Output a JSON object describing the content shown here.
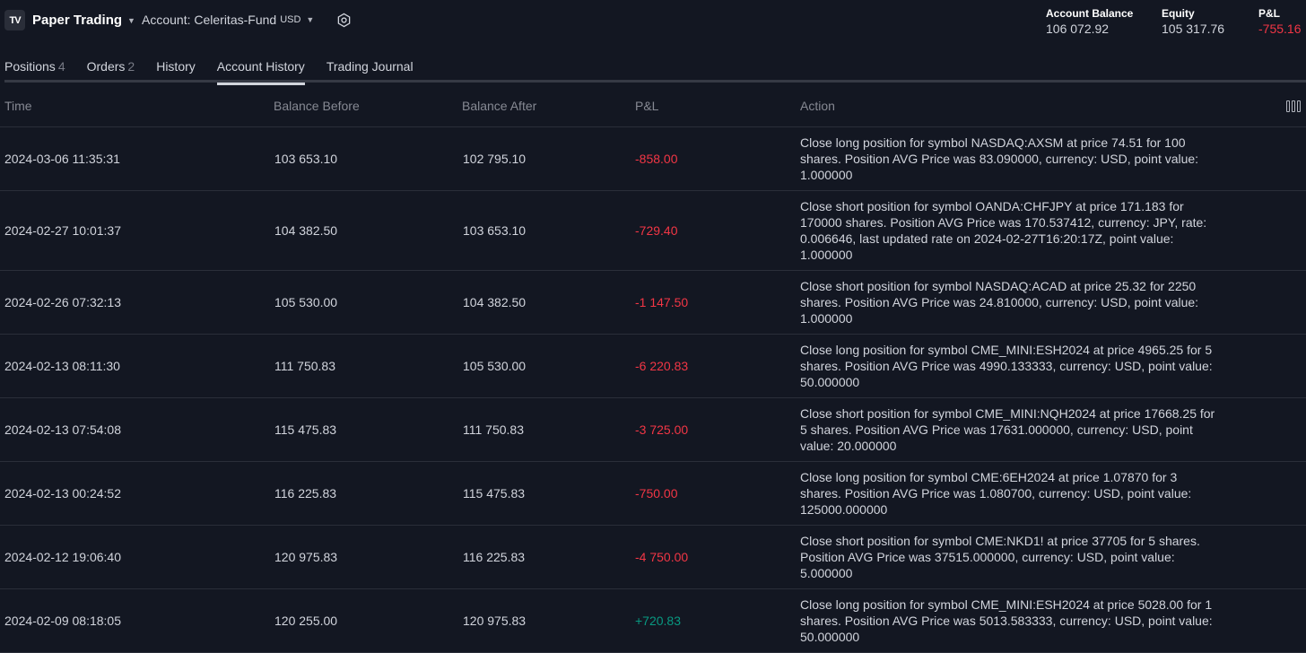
{
  "header": {
    "logo": "TV",
    "brand": "Paper Trading",
    "account_label": "Account: Celeritas-Fund",
    "account_currency": "USD",
    "stats": [
      {
        "label": "Account Balance",
        "value": "106 072.92"
      },
      {
        "label": "Equity",
        "value": "105 317.76"
      },
      {
        "label": "P&L",
        "value": "-755.16"
      }
    ]
  },
  "tabs": [
    {
      "label": "Positions",
      "count": "4"
    },
    {
      "label": "Orders",
      "count": "2"
    },
    {
      "label": "History",
      "count": ""
    },
    {
      "label": "Account History",
      "count": ""
    },
    {
      "label": "Trading Journal",
      "count": ""
    }
  ],
  "table": {
    "columns": [
      "Time",
      "Balance Before",
      "Balance After",
      "P&L",
      "Action"
    ],
    "rows": [
      {
        "time": "2024-03-06 11:35:31",
        "before": "103 653.10",
        "after": "102 795.10",
        "pl": "-858.00",
        "sign": "neg",
        "action": "Close long position for symbol NASDAQ:AXSM at price 74.51 for 100 shares. Position AVG Price was 83.090000, currency: USD, point value: 1.000000"
      },
      {
        "time": "2024-02-27 10:01:37",
        "before": "104 382.50",
        "after": "103 653.10",
        "pl": "-729.40",
        "sign": "neg",
        "action": "Close short position for symbol OANDA:CHFJPY at price 171.183 for 170000 shares. Position AVG Price was 170.537412, currency: JPY, rate: 0.006646, last updated rate on 2024-02-27T16:20:17Z, point value: 1.000000"
      },
      {
        "time": "2024-02-26 07:32:13",
        "before": "105 530.00",
        "after": "104 382.50",
        "pl": "-1 147.50",
        "sign": "neg",
        "action": "Close short position for symbol NASDAQ:ACAD at price 25.32 for 2250 shares. Position AVG Price was 24.810000, currency: USD, point value: 1.000000"
      },
      {
        "time": "2024-02-13 08:11:30",
        "before": "111 750.83",
        "after": "105 530.00",
        "pl": "-6 220.83",
        "sign": "neg",
        "action": "Close long position for symbol CME_MINI:ESH2024 at price 4965.25 for 5 shares. Position AVG Price was 4990.133333, currency: USD, point value: 50.000000"
      },
      {
        "time": "2024-02-13 07:54:08",
        "before": "115 475.83",
        "after": "111 750.83",
        "pl": "-3 725.00",
        "sign": "neg",
        "action": "Close short position for symbol CME_MINI:NQH2024 at price 17668.25 for 5 shares. Position AVG Price was 17631.000000, currency: USD, point value: 20.000000"
      },
      {
        "time": "2024-02-13 00:24:52",
        "before": "116 225.83",
        "after": "115 475.83",
        "pl": "-750.00",
        "sign": "neg",
        "action": "Close long position for symbol CME:6EH2024 at price 1.07870 for 3 shares. Position AVG Price was 1.080700, currency: USD, point value: 125000.000000"
      },
      {
        "time": "2024-02-12 19:06:40",
        "before": "120 975.83",
        "after": "116 225.83",
        "pl": "-4 750.00",
        "sign": "neg",
        "action": "Close short position for symbol CME:NKD1! at price 37705 for 5 shares. Position AVG Price was 37515.000000, currency: USD, point value: 5.000000"
      },
      {
        "time": "2024-02-09 08:18:05",
        "before": "120 255.00",
        "after": "120 975.83",
        "pl": "+720.83",
        "sign": "pos",
        "action": "Close long position for symbol CME_MINI:ESH2024 at price 5028.00 for 1 shares. Position AVG Price was 5013.583333, currency: USD, point value: 50.000000"
      }
    ]
  }
}
